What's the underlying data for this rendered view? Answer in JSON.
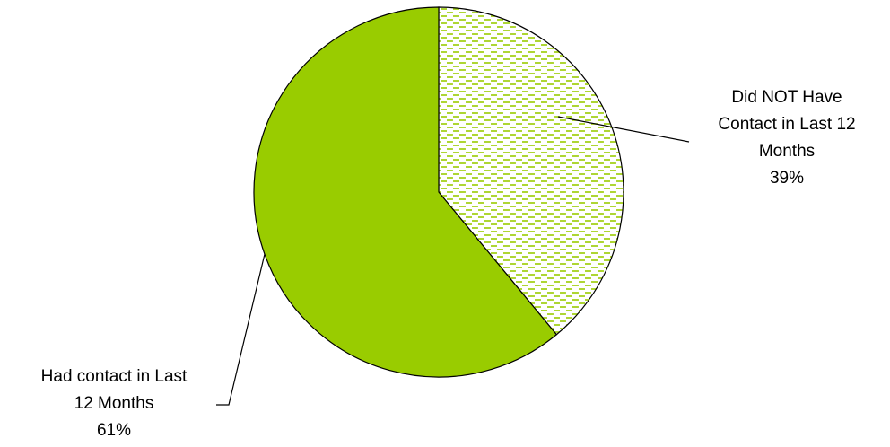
{
  "chart_data": {
    "type": "pie",
    "title": "",
    "slices": [
      {
        "label_lines": [
          "Did NOT Have",
          "Contact in Last 12",
          "Months"
        ],
        "value": 39,
        "percent_label": "39%",
        "color": "#99cc00",
        "pattern": "dashed-horizontal"
      },
      {
        "label_lines": [
          "Had contact in Last",
          "12 Months"
        ],
        "value": 61,
        "percent_label": "61%",
        "color": "#99cc00",
        "pattern": "solid"
      }
    ],
    "start_angle_deg": 0,
    "direction": "clockwise",
    "legend": "none"
  }
}
